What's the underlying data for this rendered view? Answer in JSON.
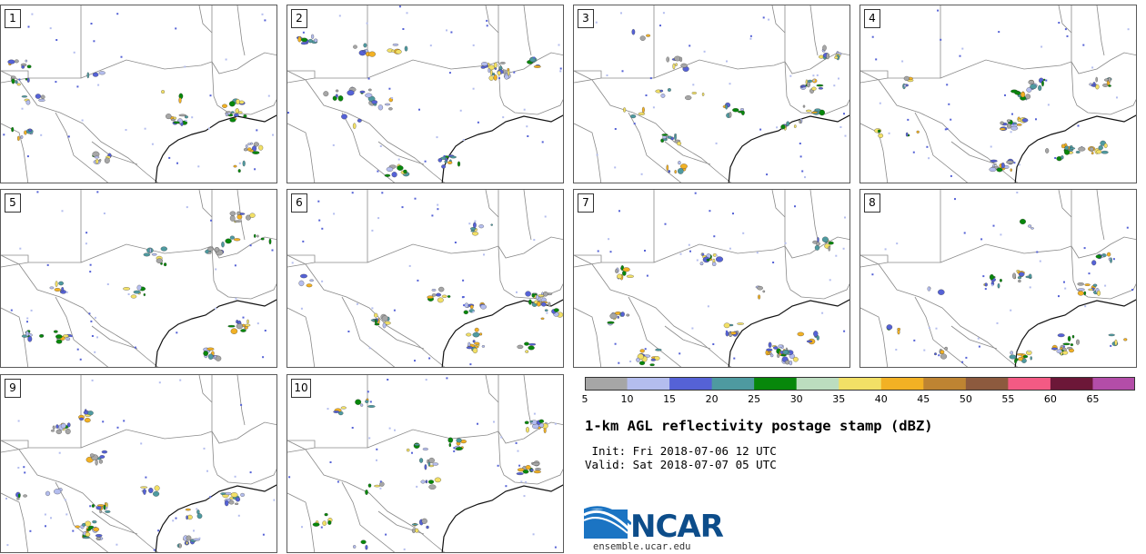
{
  "panels": [
    {
      "label": "1"
    },
    {
      "label": "2"
    },
    {
      "label": "3"
    },
    {
      "label": "4"
    },
    {
      "label": "5"
    },
    {
      "label": "6"
    },
    {
      "label": "7"
    },
    {
      "label": "8"
    },
    {
      "label": "9"
    },
    {
      "label": "10"
    }
  ],
  "colorbar": {
    "ticks": [
      "5",
      "10",
      "15",
      "20",
      "25",
      "30",
      "35",
      "40",
      "45",
      "50",
      "55",
      "60",
      "65"
    ],
    "colors": [
      "#a6a6a6",
      "#b4bdee",
      "#5562d6",
      "#4e9aa0",
      "#07870b",
      "#bcddbf",
      "#f2e066",
      "#f2b124",
      "#be8432",
      "#8d5a3e",
      "#f35a84",
      "#6c1738",
      "#b34da8"
    ]
  },
  "title": "1-km AGL reflectivity postage stamp (dBZ)",
  "init": " Init: Fri 2018-07-06 12 UTC",
  "valid": "Valid: Sat 2018-07-07 05 UTC",
  "logo": {
    "text": "NCAR",
    "site": "ensemble.ucar.edu"
  }
}
